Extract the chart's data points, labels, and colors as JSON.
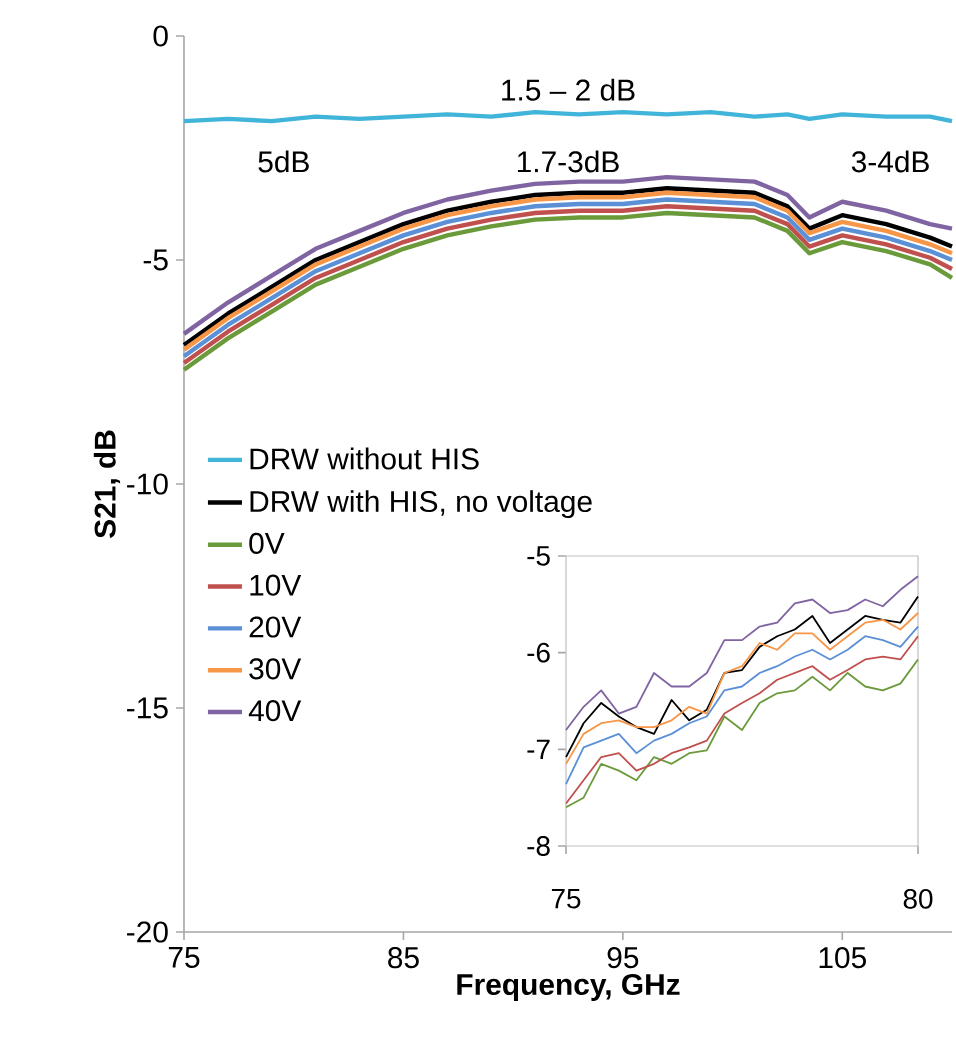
{
  "chart_data": [
    {
      "type": "line",
      "xlabel": "Frequency, GHz",
      "ylabel": "S21, dB",
      "xlim": [
        75,
        110
      ],
      "ylim": [
        -20,
        0
      ],
      "xticks": [
        75,
        85,
        95,
        105
      ],
      "yticks": [
        -20,
        -15,
        -10,
        -5,
        0
      ],
      "grid": false,
      "legend": "left",
      "x": [
        75,
        77,
        79,
        81,
        83,
        85,
        87,
        89,
        91,
        93,
        95,
        97,
        99,
        101,
        102.5,
        103.5,
        105,
        107,
        109,
        110
      ],
      "series": [
        {
          "name": "DRW without HIS",
          "color": "#41b4d9",
          "values": [
            -1.9,
            -1.85,
            -1.9,
            -1.8,
            -1.85,
            -1.8,
            -1.75,
            -1.8,
            -1.7,
            -1.75,
            -1.7,
            -1.75,
            -1.7,
            -1.8,
            -1.75,
            -1.85,
            -1.75,
            -1.8,
            -1.8,
            -1.9
          ]
        },
        {
          "name": "DRW with HIS, no voltage",
          "color": "#000000",
          "values": [
            -6.9,
            -6.2,
            -5.6,
            -5.0,
            -4.6,
            -4.2,
            -3.9,
            -3.7,
            -3.55,
            -3.5,
            -3.5,
            -3.4,
            -3.45,
            -3.5,
            -3.8,
            -4.3,
            -4.0,
            -4.2,
            -4.5,
            -4.7
          ]
        },
        {
          "name": "0V",
          "color": "#6a9a3a",
          "values": [
            -7.45,
            -6.75,
            -6.15,
            -5.55,
            -5.15,
            -4.75,
            -4.45,
            -4.25,
            -4.1,
            -4.05,
            -4.05,
            -3.95,
            -4.0,
            -4.05,
            -4.35,
            -4.85,
            -4.6,
            -4.8,
            -5.1,
            -5.4
          ]
        },
        {
          "name": "10V",
          "color": "#c0504d",
          "values": [
            -7.3,
            -6.6,
            -6.0,
            -5.4,
            -5.0,
            -4.6,
            -4.3,
            -4.1,
            -3.95,
            -3.9,
            -3.9,
            -3.8,
            -3.85,
            -3.9,
            -4.2,
            -4.7,
            -4.45,
            -4.65,
            -4.95,
            -5.2
          ]
        },
        {
          "name": "20V",
          "color": "#5b8fd6",
          "values": [
            -7.15,
            -6.45,
            -5.85,
            -5.25,
            -4.85,
            -4.45,
            -4.15,
            -3.95,
            -3.8,
            -3.75,
            -3.75,
            -3.65,
            -3.7,
            -3.75,
            -4.05,
            -4.55,
            -4.3,
            -4.5,
            -4.8,
            -5.0
          ]
        },
        {
          "name": "30V",
          "color": "#f79646",
          "values": [
            -7.0,
            -6.3,
            -5.7,
            -5.1,
            -4.7,
            -4.3,
            -4.0,
            -3.8,
            -3.65,
            -3.6,
            -3.6,
            -3.5,
            -3.55,
            -3.6,
            -3.9,
            -4.4,
            -4.15,
            -4.35,
            -4.65,
            -4.85
          ]
        },
        {
          "name": "40V",
          "color": "#8064a2",
          "values": [
            -6.65,
            -5.95,
            -5.35,
            -4.75,
            -4.35,
            -3.95,
            -3.65,
            -3.45,
            -3.3,
            -3.25,
            -3.25,
            -3.15,
            -3.2,
            -3.25,
            -3.55,
            -4.05,
            -3.7,
            -3.9,
            -4.2,
            -4.3
          ]
        }
      ],
      "annotations": [
        "1.5 – 2 dB",
        "5dB",
        "1.7-3dB",
        "3-4dB"
      ]
    },
    {
      "type": "line",
      "xlim": [
        75,
        80
      ],
      "ylim": [
        -8,
        -5
      ],
      "xticks": [
        75,
        80
      ],
      "yticks": [
        -8,
        -7,
        -6,
        -5
      ],
      "grid": false,
      "x": [
        75,
        75.25,
        75.5,
        75.75,
        76,
        76.25,
        76.5,
        76.75,
        77,
        77.25,
        77.5,
        77.75,
        78,
        78.25,
        78.5,
        78.75,
        79,
        79.25,
        79.5,
        79.75,
        80
      ],
      "series": [
        {
          "color": "#000000",
          "values": [
            -7.08,
            -6.73,
            -6.52,
            -6.66,
            -6.77,
            -6.84,
            -6.49,
            -6.7,
            -6.59,
            -6.21,
            -6.18,
            -5.94,
            -5.83,
            -5.76,
            -5.62,
            -5.9,
            -5.76,
            -5.62,
            -5.66,
            -5.69,
            -5.42
          ]
        },
        {
          "color": "#6a9a3a",
          "values": [
            -7.6,
            -7.5,
            -7.15,
            -7.22,
            -7.32,
            -7.08,
            -7.15,
            -7.04,
            -7.01,
            -6.66,
            -6.8,
            -6.52,
            -6.42,
            -6.39,
            -6.25,
            -6.39,
            -6.21,
            -6.35,
            -6.39,
            -6.32,
            -6.07
          ]
        },
        {
          "color": "#c0504d",
          "values": [
            -7.56,
            -7.32,
            -7.08,
            -7.04,
            -7.22,
            -7.15,
            -7.04,
            -6.98,
            -6.91,
            -6.63,
            -6.52,
            -6.42,
            -6.28,
            -6.21,
            -6.14,
            -6.28,
            -6.18,
            -6.07,
            -6.04,
            -6.07,
            -5.83
          ]
        },
        {
          "color": "#5b8fd6",
          "values": [
            -7.36,
            -6.98,
            -6.91,
            -6.84,
            -7.04,
            -6.91,
            -6.84,
            -6.73,
            -6.66,
            -6.39,
            -6.35,
            -6.21,
            -6.14,
            -6.04,
            -5.97,
            -6.07,
            -5.97,
            -5.83,
            -5.87,
            -5.94,
            -5.73
          ]
        },
        {
          "color": "#f79646",
          "values": [
            -7.15,
            -6.84,
            -6.73,
            -6.7,
            -6.77,
            -6.77,
            -6.7,
            -6.56,
            -6.63,
            -6.21,
            -6.14,
            -5.9,
            -5.97,
            -5.8,
            -5.8,
            -5.97,
            -5.83,
            -5.69,
            -5.66,
            -5.76,
            -5.59
          ]
        },
        {
          "color": "#8064a2",
          "values": [
            -6.8,
            -6.56,
            -6.39,
            -6.63,
            -6.56,
            -6.21,
            -6.35,
            -6.35,
            -6.21,
            -5.87,
            -5.87,
            -5.73,
            -5.69,
            -5.49,
            -5.45,
            -5.59,
            -5.56,
            -5.45,
            -5.52,
            -5.35,
            -5.21
          ]
        }
      ]
    }
  ]
}
